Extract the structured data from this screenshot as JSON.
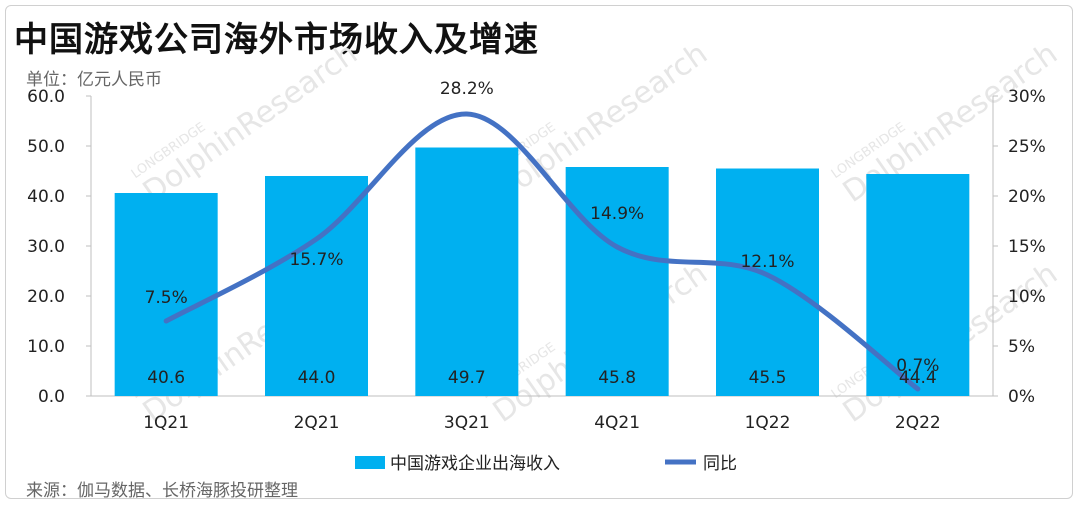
{
  "title": "中国游戏公司海外市场收入及增速",
  "unit": "单位：亿元人民币",
  "source": "来源：伽马数据、长桥海豚投研整理",
  "watermark": {
    "brand": "LONGBRIDGE",
    "name": "DolphinResearch"
  },
  "colors": {
    "bar": "#00b0f0",
    "line": "#4472c4",
    "axis": "#bfbfbf",
    "text": "#222222"
  },
  "chart_data": {
    "type": "bar",
    "categories": [
      "1Q21",
      "2Q21",
      "3Q21",
      "4Q21",
      "1Q22",
      "2Q22"
    ],
    "series": [
      {
        "name": "中国游戏企业出海收入",
        "type": "bar",
        "axis": "left",
        "values": [
          40.6,
          44.0,
          49.7,
          45.8,
          45.5,
          44.4
        ],
        "labels": [
          "40.6",
          "44.0",
          "49.7",
          "45.8",
          "45.5",
          "44.4"
        ]
      },
      {
        "name": "同比",
        "type": "line",
        "axis": "right",
        "values": [
          7.5,
          15.7,
          28.2,
          14.9,
          12.1,
          0.7
        ],
        "labels": [
          "7.5%",
          "15.7%",
          "28.2%",
          "14.9%",
          "12.1%",
          "0.7%"
        ]
      }
    ],
    "y_left": {
      "min": 0,
      "max": 60,
      "ticks": [
        "0.0",
        "10.0",
        "20.0",
        "30.0",
        "40.0",
        "50.0",
        "60.0"
      ]
    },
    "y_right": {
      "min": 0,
      "max": 30,
      "ticks": [
        "0%",
        "5%",
        "10%",
        "15%",
        "20%",
        "25%",
        "30%"
      ]
    },
    "legend": {
      "position": "bottom"
    },
    "grid": false
  }
}
